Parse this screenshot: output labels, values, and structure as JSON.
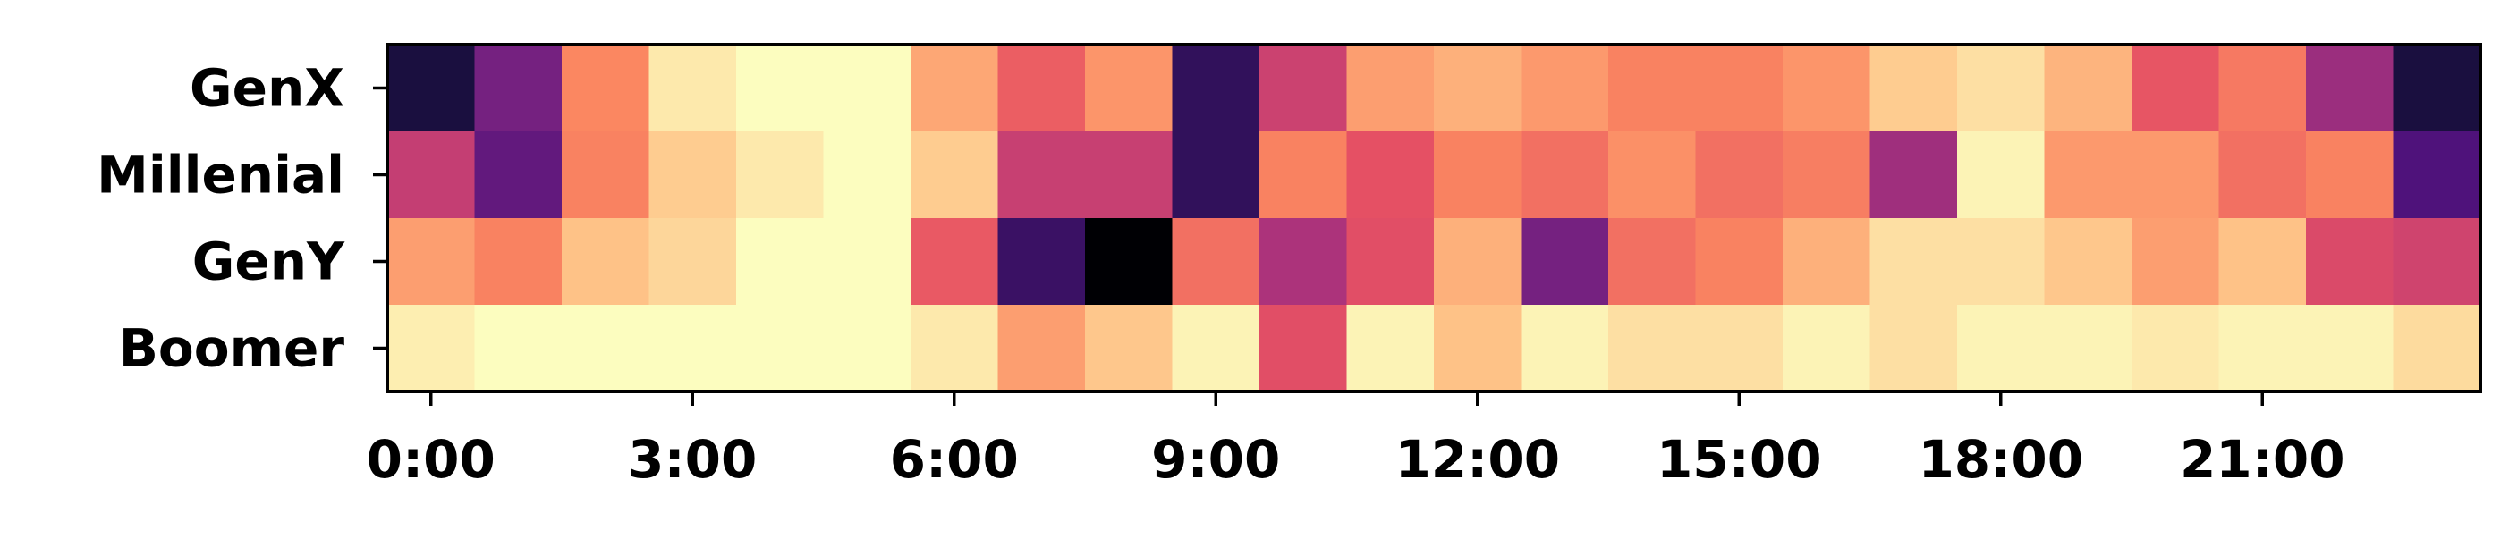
{
  "chart_data": {
    "type": "heatmap",
    "title": "",
    "xlabel": "",
    "ylabel": "",
    "colormap": "magma",
    "value_range": [
      0,
      1
    ],
    "grid": false,
    "legend": "none",
    "rows": [
      "GenX",
      "Millenial",
      "GenY",
      "Boomer"
    ],
    "columns": [
      "0:00",
      "1:00",
      "2:00",
      "3:00",
      "4:00",
      "5:00",
      "6:00",
      "7:00",
      "8:00",
      "9:00",
      "10:00",
      "11:00",
      "12:00",
      "13:00",
      "14:00",
      "15:00",
      "16:00",
      "17:00",
      "18:00",
      "19:00",
      "20:00",
      "21:00",
      "22:00",
      "23:00"
    ],
    "x_ticks": [
      "0:00",
      "3:00",
      "6:00",
      "9:00",
      "12:00",
      "15:00",
      "18:00",
      "21:00"
    ],
    "x_tick_columns": [
      0,
      3,
      6,
      9,
      12,
      15,
      18,
      21
    ],
    "values": [
      [
        0.12,
        0.35,
        0.75,
        0.96,
        1.0,
        1.0,
        0.82,
        0.66,
        0.78,
        0.18,
        0.56,
        0.8,
        0.84,
        0.79,
        0.74,
        0.74,
        0.78,
        0.9,
        0.94,
        0.85,
        0.64,
        0.72,
        0.44,
        0.12
      ],
      [
        0.54,
        0.3,
        0.74,
        0.9,
        0.96,
        1.0,
        0.9,
        0.55,
        0.55,
        0.18,
        0.74,
        0.63,
        0.74,
        0.7,
        0.77,
        0.7,
        0.73,
        0.45,
        0.98,
        0.79,
        0.79,
        0.7,
        0.74,
        0.25
      ],
      [
        0.8,
        0.74,
        0.88,
        0.92,
        1.0,
        1.0,
        0.65,
        0.2,
        0.0,
        0.7,
        0.48,
        0.62,
        0.84,
        0.35,
        0.7,
        0.74,
        0.84,
        0.94,
        0.94,
        0.89,
        0.8,
        0.88,
        0.6,
        0.57
      ],
      [
        0.97,
        1.0,
        1.0,
        1.0,
        1.0,
        1.0,
        0.96,
        0.8,
        0.89,
        0.98,
        0.62,
        0.98,
        0.88,
        0.98,
        0.94,
        0.94,
        0.98,
        0.94,
        0.98,
        0.98,
        0.96,
        0.98,
        0.98,
        0.93
      ]
    ]
  }
}
